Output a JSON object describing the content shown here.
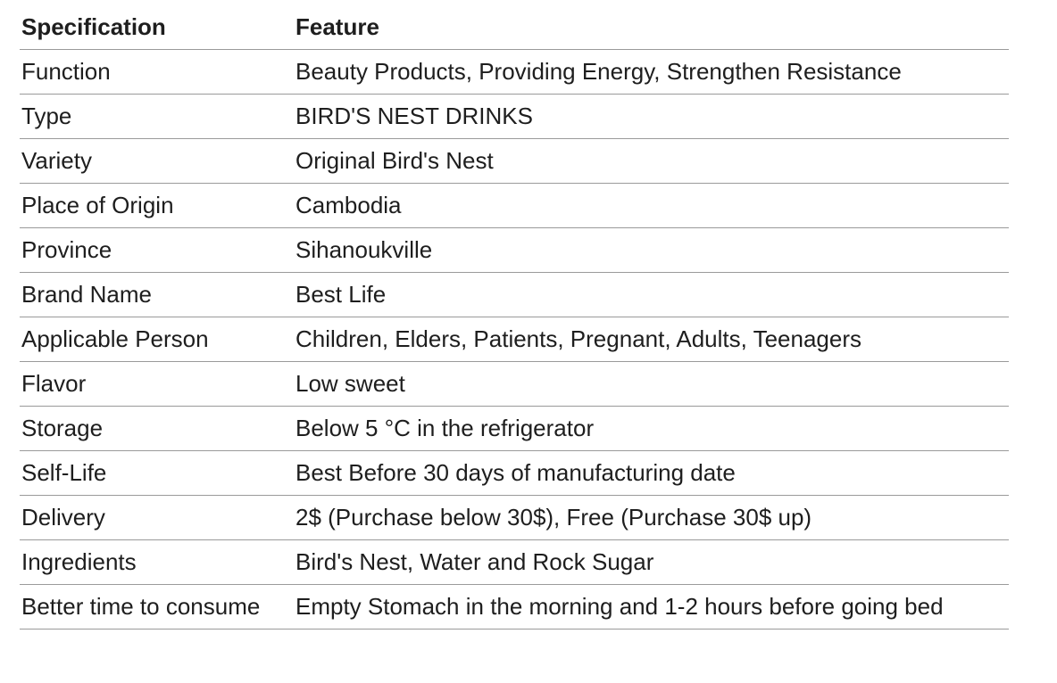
{
  "table": {
    "headers": [
      "Specification",
      "Feature"
    ],
    "rows": [
      [
        "Function",
        "Beauty Products, Providing Energy, Strengthen Resistance"
      ],
      [
        "Type",
        "BIRD'S NEST DRINKS"
      ],
      [
        "Variety",
        "Original Bird's Nest"
      ],
      [
        "Place of Origin",
        "Cambodia"
      ],
      [
        "Province",
        "Sihanoukville"
      ],
      [
        "Brand Name",
        "Best Life"
      ],
      [
        "Applicable Person",
        "Children, Elders, Patients, Pregnant, Adults, Teenagers"
      ],
      [
        "Flavor",
        "Low sweet"
      ],
      [
        "Storage",
        "Below 5 °C in the refrigerator"
      ],
      [
        "Self-Life",
        "Best Before 30 days of manufacturing date"
      ],
      [
        "Delivery",
        "2$ (Purchase below 30$), Free (Purchase 30$ up)"
      ],
      [
        "Ingredients",
        "Bird's Nest, Water and Rock Sugar"
      ],
      [
        "Better time to consume",
        "Empty Stomach in the morning and 1-2 hours before going bed"
      ]
    ]
  }
}
